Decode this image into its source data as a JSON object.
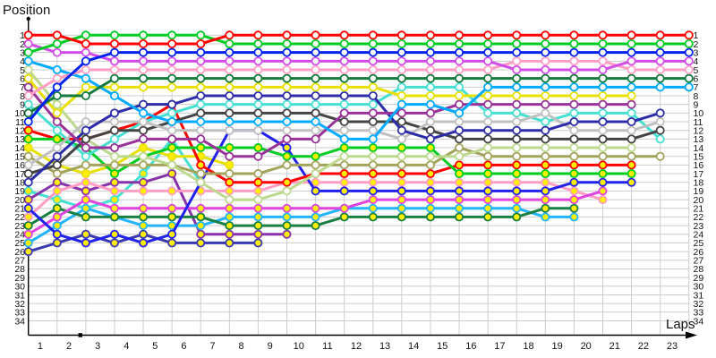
{
  "chart_data": {
    "type": "line",
    "title": "",
    "xlabel": "Laps",
    "ylabel": "Position",
    "x_ticks": [
      1,
      2,
      3,
      4,
      5,
      6,
      7,
      8,
      9,
      10,
      11,
      12,
      13,
      14,
      15,
      16,
      17,
      18,
      19,
      20,
      21,
      22,
      23
    ],
    "columns": 24,
    "y_min": 1,
    "y_max": 34,
    "grid": true,
    "legend": "none",
    "axis_color": "#000000",
    "grid_color": "#cccccc",
    "marker_fill_white": "#ffffff",
    "marker_fill_yellow": "#ffee00",
    "series": [
      {
        "name": "red",
        "color": "#ff0000",
        "marker": "white",
        "positions": [
          1,
          1,
          2,
          2,
          2,
          2,
          2,
          1,
          1,
          1,
          1,
          1,
          1,
          1,
          1,
          1,
          1,
          1,
          1,
          1,
          1,
          1,
          1,
          1
        ]
      },
      {
        "name": "green",
        "color": "#00cc22",
        "marker": "white",
        "positions": [
          3,
          2,
          1,
          1,
          1,
          1,
          1,
          2,
          2,
          2,
          2,
          2,
          2,
          2,
          2,
          2,
          2,
          2,
          2,
          2,
          2,
          2,
          2,
          2
        ]
      },
      {
        "name": "blue",
        "color": "#0022ee",
        "marker": "white",
        "positions": [
          11,
          7,
          4,
          3,
          3,
          3,
          3,
          3,
          3,
          3,
          3,
          3,
          3,
          3,
          3,
          3,
          3,
          3,
          3,
          3,
          3,
          3,
          3,
          3
        ]
      },
      {
        "name": "violet",
        "color": "#d24de8",
        "marker": "white",
        "positions": [
          2,
          3,
          3,
          4,
          4,
          4,
          4,
          4,
          4,
          4,
          4,
          4,
          4,
          4,
          4,
          4,
          4,
          5,
          5,
          5,
          5,
          4,
          4,
          4
        ]
      },
      {
        "name": "pink",
        "color": "#ff9dc4",
        "marker": "white",
        "positions": [
          8,
          6,
          5,
          5,
          5,
          5,
          5,
          5,
          5,
          5,
          5,
          5,
          5,
          5,
          5,
          5,
          5,
          4,
          4,
          4,
          4,
          5,
          5,
          5
        ]
      },
      {
        "name": "dark-green",
        "color": "#147a3d",
        "marker": "white",
        "positions": [
          10,
          8,
          8,
          6,
          6,
          6,
          6,
          6,
          6,
          6,
          6,
          6,
          6,
          6,
          6,
          6,
          6,
          6,
          6,
          6,
          6,
          6,
          6,
          6
        ]
      },
      {
        "name": "sky-blue",
        "color": "#00aaff",
        "marker": "white",
        "positions": [
          4,
          5,
          6,
          8,
          10,
          11,
          11,
          11,
          11,
          11,
          11,
          13,
          13,
          9,
          9,
          10,
          7,
          7,
          7,
          7,
          7,
          7,
          7,
          7
        ]
      },
      {
        "name": "yellow",
        "color": "#e8e000",
        "marker": "white",
        "positions": [
          6,
          10,
          7,
          7,
          7,
          7,
          7,
          7,
          7,
          7,
          7,
          7,
          7,
          8,
          8,
          8,
          8,
          8,
          8,
          8,
          8,
          8,
          null,
          null
        ]
      },
      {
        "name": "purple",
        "color": "#993399",
        "marker": "white",
        "positions": [
          7,
          11,
          14,
          14,
          13,
          13,
          13,
          15,
          15,
          13,
          13,
          10,
          10,
          10,
          10,
          9,
          9,
          9,
          9,
          9,
          9,
          9,
          null,
          null
        ]
      },
      {
        "name": "navy",
        "color": "#2d2daa",
        "marker": "white",
        "positions": [
          18,
          15,
          12,
          10,
          9,
          9,
          8,
          8,
          8,
          8,
          8,
          8,
          8,
          12,
          13,
          12,
          12,
          12,
          12,
          11,
          11,
          11,
          10,
          null
        ]
      },
      {
        "name": "gray",
        "color": "#c0c0c0",
        "marker": "white",
        "positions": [
          16,
          14,
          11,
          11,
          11,
          12,
          12,
          12,
          12,
          12,
          12,
          12,
          12,
          13,
          11,
          11,
          11,
          11,
          10,
          12,
          12,
          12,
          11,
          null
        ]
      },
      {
        "name": "black",
        "color": "#444444",
        "marker": "white",
        "positions": [
          17,
          16,
          13,
          12,
          12,
          11,
          10,
          10,
          10,
          10,
          10,
          11,
          11,
          11,
          12,
          13,
          13,
          13,
          13,
          13,
          13,
          13,
          12,
          null
        ]
      },
      {
        "name": "turquoise",
        "color": "#45e0d2",
        "marker": "white",
        "positions": [
          9,
          12,
          15,
          13,
          11,
          10,
          9,
          9,
          9,
          9,
          9,
          9,
          9,
          7,
          7,
          7,
          10,
          10,
          11,
          10,
          10,
          10,
          13,
          null
        ]
      },
      {
        "name": "pale-green",
        "color": "#bcd98e",
        "marker": "white",
        "positions": [
          5,
          9,
          13,
          15,
          15,
          16,
          18,
          20,
          20,
          19,
          17,
          15,
          15,
          15,
          15,
          15,
          14,
          14,
          14,
          14,
          14,
          14,
          null,
          null
        ]
      },
      {
        "name": "olive",
        "color": "#a3a35c",
        "marker": "white",
        "positions": [
          15,
          17,
          16,
          16,
          16,
          16,
          17,
          17,
          17,
          16,
          16,
          16,
          16,
          16,
          16,
          14,
          15,
          15,
          15,
          15,
          15,
          15,
          15,
          null
        ]
      },
      {
        "name": "green-2",
        "color": "#00cc22",
        "marker": "yellow",
        "positions": [
          13,
          13,
          14,
          17,
          15,
          14,
          14,
          14,
          14,
          15,
          15,
          14,
          14,
          14,
          14,
          17,
          17,
          17,
          17,
          17,
          17,
          17,
          null,
          null
        ]
      },
      {
        "name": "red-2",
        "color": "#ff0000",
        "marker": "yellow",
        "positions": [
          12,
          13,
          13,
          12,
          11,
          9,
          16,
          18,
          18,
          18,
          17,
          17,
          17,
          17,
          17,
          16,
          16,
          16,
          16,
          16,
          16,
          16,
          null,
          null
        ]
      },
      {
        "name": "blue-2",
        "color": "#2222ee",
        "marker": "yellow",
        "positions": [
          21,
          24,
          25,
          24,
          25,
          24,
          18,
          12,
          12,
          14,
          19,
          19,
          19,
          19,
          19,
          19,
          19,
          19,
          19,
          18,
          18,
          18,
          null,
          null
        ]
      },
      {
        "name": "magenta-2",
        "color": "#e044e0",
        "marker": "yellow",
        "positions": [
          24,
          22,
          20,
          21,
          21,
          21,
          21,
          21,
          21,
          21,
          21,
          21,
          20,
          20,
          20,
          20,
          20,
          20,
          20,
          20,
          19,
          null,
          null,
          null
        ]
      },
      {
        "name": "pink-2",
        "color": "#ff9dc4",
        "marker": "yellow",
        "positions": [
          22,
          19,
          18,
          19,
          19,
          19,
          19,
          19,
          19,
          18,
          18,
          18,
          18,
          18,
          18,
          18,
          18,
          18,
          18,
          19,
          20,
          null,
          null,
          null
        ]
      },
      {
        "name": "dark-green-2",
        "color": "#188042",
        "marker": "yellow",
        "positions": [
          23,
          21,
          22,
          22,
          22,
          22,
          22,
          23,
          23,
          23,
          23,
          22,
          22,
          22,
          22,
          22,
          22,
          22,
          21,
          21,
          null,
          null,
          null,
          null
        ]
      },
      {
        "name": "sky-blue-2",
        "color": "#22b4ff",
        "marker": "yellow",
        "positions": [
          25,
          23,
          21,
          22,
          23,
          23,
          23,
          22,
          22,
          22,
          22,
          21,
          21,
          21,
          21,
          21,
          21,
          21,
          22,
          22,
          null,
          null,
          null,
          null
        ]
      },
      {
        "name": "yellow-2",
        "color": "#e8e000",
        "marker": "yellow",
        "positions": [
          14,
          16,
          17,
          16,
          14,
          15,
          15,
          16,
          null,
          null,
          null,
          null,
          null,
          null,
          null,
          null,
          null,
          null,
          null,
          null,
          null,
          null,
          null,
          null
        ]
      },
      {
        "name": "purple-2",
        "color": "#8833aa",
        "marker": "yellow",
        "positions": [
          20,
          18,
          19,
          18,
          18,
          17,
          24,
          24,
          24,
          24,
          null,
          null,
          null,
          null,
          null,
          null,
          null,
          null,
          null,
          null,
          null,
          null,
          null,
          null
        ]
      },
      {
        "name": "turquoise-2",
        "color": "#45e0d2",
        "marker": "yellow",
        "positions": [
          19,
          20,
          21,
          20,
          17,
          13,
          18,
          null,
          null,
          null,
          null,
          null,
          null,
          null,
          null,
          null,
          null,
          null,
          null,
          null,
          null,
          null,
          null,
          null
        ]
      },
      {
        "name": "navy-2",
        "color": "#3a3ab0",
        "marker": "yellow",
        "positions": [
          26,
          25,
          24,
          25,
          24,
          25,
          25,
          25,
          25,
          null,
          null,
          null,
          null,
          null,
          null,
          null,
          null,
          null,
          null,
          null,
          null,
          null,
          null,
          null
        ]
      }
    ]
  }
}
